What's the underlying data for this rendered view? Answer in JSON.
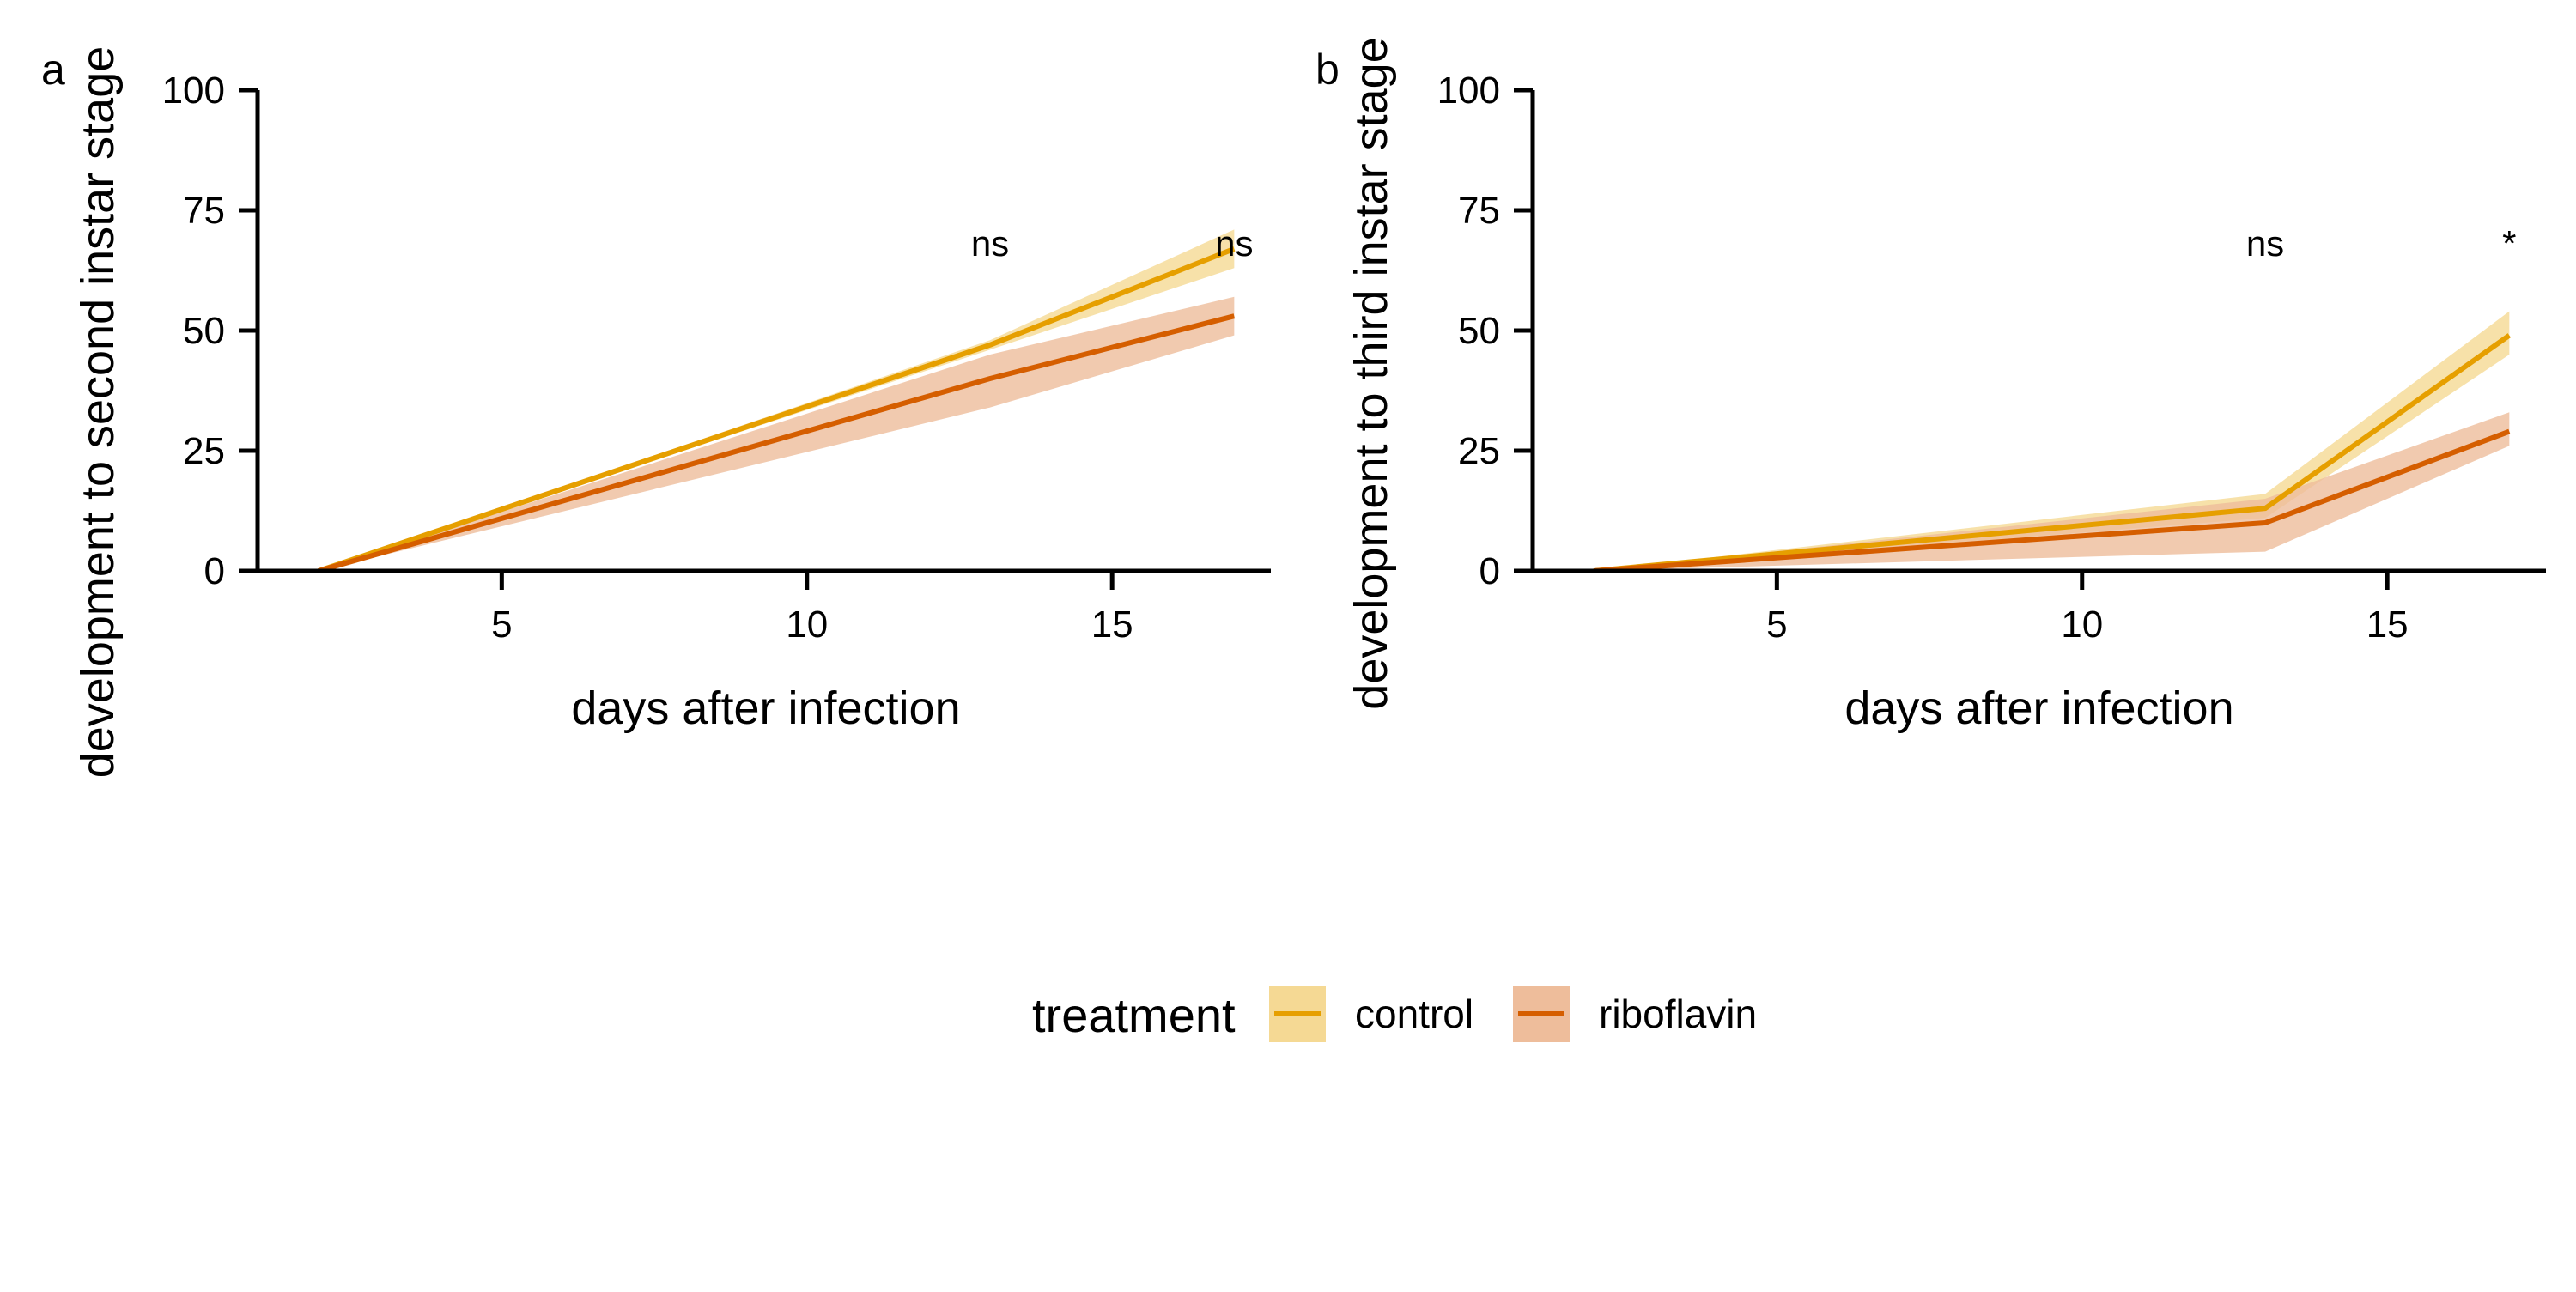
{
  "chart_data": [
    {
      "type": "line",
      "panel_label": "a",
      "xlabel": "days after infection",
      "ylabel": "development to second instar stage",
      "xlim": [
        1,
        17.6
      ],
      "ylim": [
        0,
        100
      ],
      "xticks": [
        5,
        10,
        15
      ],
      "yticks": [
        0,
        25,
        50,
        75,
        100
      ],
      "grid": false,
      "series": [
        {
          "name": "control",
          "x": [
            2,
            13,
            17
          ],
          "y": [
            0,
            47,
            67
          ],
          "lower": [
            0,
            46,
            63
          ],
          "upper": [
            0,
            48,
            71
          ]
        },
        {
          "name": "riboflavin",
          "x": [
            2,
            13,
            17
          ],
          "y": [
            0,
            40,
            53
          ],
          "lower": [
            0,
            34,
            49
          ],
          "upper": [
            0,
            45,
            57
          ]
        }
      ],
      "annotations": [
        {
          "x": 13,
          "y": 67,
          "text": "ns"
        },
        {
          "x": 17,
          "y": 67,
          "text": "ns"
        }
      ]
    },
    {
      "type": "line",
      "panel_label": "b",
      "xlabel": "days after infection",
      "ylabel": "development to third instar stage",
      "xlim": [
        1,
        17.6
      ],
      "ylim": [
        0,
        100
      ],
      "xticks": [
        5,
        10,
        15
      ],
      "yticks": [
        0,
        25,
        50,
        75,
        100
      ],
      "grid": false,
      "series": [
        {
          "name": "control",
          "x": [
            2,
            13,
            17
          ],
          "y": [
            0,
            13,
            49
          ],
          "lower": [
            0,
            11,
            45
          ],
          "upper": [
            0,
            16,
            54
          ]
        },
        {
          "name": "riboflavin",
          "x": [
            2,
            13,
            17
          ],
          "y": [
            0,
            10,
            29
          ],
          "lower": [
            0,
            4,
            26
          ],
          "upper": [
            0,
            15,
            33
          ]
        }
      ],
      "annotations": [
        {
          "x": 13,
          "y": 67,
          "text": "ns"
        },
        {
          "x": 17,
          "y": 67,
          "text": "*"
        }
      ]
    }
  ],
  "legend": {
    "title": "treatment",
    "position": "bottom",
    "items": [
      {
        "label": "control",
        "line_color": "#E69F00",
        "fill_color": "#F5D994"
      },
      {
        "label": "riboflavin",
        "line_color": "#D55E00",
        "fill_color": "#EEBD9B"
      }
    ]
  },
  "colors": {
    "control_line": "#E69F00",
    "control_band": "#F5D994",
    "riboflavin_line": "#D55E00",
    "riboflavin_band": "#EEBD9B",
    "axis": "#000000"
  }
}
